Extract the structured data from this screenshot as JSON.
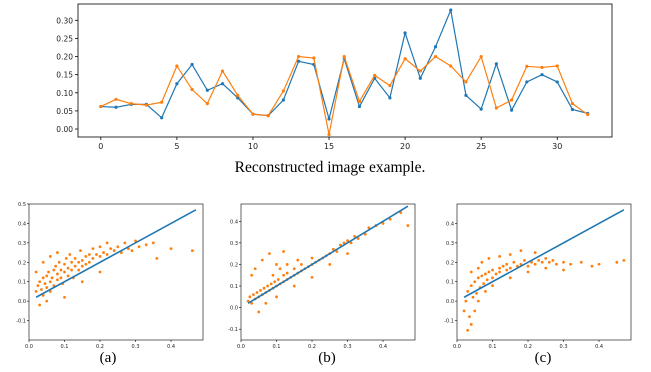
{
  "top_caption": "Reconstructed image example.",
  "colors": {
    "blue": "#1f77b4",
    "orange": "#ff7f0e",
    "axis": "#000000"
  },
  "chart_data": [
    {
      "type": "line",
      "x": [
        0,
        1,
        2,
        3,
        4,
        5,
        6,
        7,
        8,
        9,
        10,
        11,
        12,
        13,
        14,
        15,
        16,
        17,
        18,
        19,
        20,
        21,
        22,
        23,
        24,
        25,
        26,
        27,
        28,
        29,
        30,
        31,
        32
      ],
      "series": [
        {
          "values": [
            0.062,
            0.06,
            0.068,
            0.068,
            0.031,
            0.125,
            0.178,
            0.107,
            0.125,
            0.086,
            0.041,
            0.037,
            0.08,
            0.187,
            0.178,
            0.028,
            0.194,
            0.062,
            0.14,
            0.086,
            0.265,
            0.14,
            0.227,
            0.328,
            0.093,
            0.055,
            0.18,
            0.052,
            0.13,
            0.15,
            0.13,
            0.054,
            0.043
          ],
          "color": "#1f77b4"
        },
        {
          "values": [
            0.062,
            0.082,
            0.07,
            0.066,
            0.074,
            0.174,
            0.109,
            0.07,
            0.16,
            0.093,
            0.041,
            0.037,
            0.105,
            0.2,
            0.196,
            -0.015,
            0.2,
            0.076,
            0.148,
            0.12,
            0.194,
            0.16,
            0.2,
            0.174,
            0.13,
            0.2,
            0.058,
            0.08,
            0.173,
            0.17,
            0.174,
            0.07,
            0.04
          ],
          "color": "#ff7f0e"
        }
      ],
      "xticks": [
        "0",
        "5",
        "10",
        "15",
        "20",
        "25",
        "30"
      ],
      "yticks": [
        "0.00",
        "0.05",
        "0.10",
        "0.15",
        "0.20",
        "0.25",
        "0.30"
      ],
      "xlim": [
        -1.5,
        33.6
      ],
      "ylim": [
        -0.022,
        0.345
      ],
      "grid": false
    },
    {
      "type": "scatter",
      "panel_label": "(a)",
      "xlim": [
        0,
        0.49
      ],
      "ylim": [
        -0.2,
        0.5
      ],
      "xticks": [
        "0.0",
        "0.1",
        "0.2",
        "0.3",
        "0.4"
      ],
      "yticks": [
        "-0.1",
        "0.0",
        "0.1",
        "0.2",
        "0.3",
        "0.4",
        "0.5"
      ],
      "identity_line": {
        "x": [
          0.02,
          0.47
        ],
        "y": [
          0.02,
          0.47
        ],
        "color": "#1f77b4"
      },
      "points_color": "#ff7f0e",
      "points": [
        [
          0.02,
          0.05
        ],
        [
          0.025,
          0.08
        ],
        [
          0.03,
          0.1
        ],
        [
          0.035,
          0.06
        ],
        [
          0.04,
          0.12
        ],
        [
          0.04,
          0.03
        ],
        [
          0.045,
          0.09
        ],
        [
          0.05,
          0.13
        ],
        [
          0.05,
          0.07
        ],
        [
          0.055,
          0.15
        ],
        [
          0.06,
          0.1
        ],
        [
          0.06,
          0.05
        ],
        [
          0.065,
          0.12
        ],
        [
          0.07,
          0.16
        ],
        [
          0.07,
          0.08
        ],
        [
          0.075,
          0.18
        ],
        [
          0.08,
          0.11
        ],
        [
          0.08,
          0.14
        ],
        [
          0.085,
          0.2
        ],
        [
          0.09,
          0.12
        ],
        [
          0.09,
          0.16
        ],
        [
          0.095,
          0.09
        ],
        [
          0.1,
          0.15
        ],
        [
          0.1,
          0.19
        ],
        [
          0.105,
          0.22
        ],
        [
          0.11,
          0.13
        ],
        [
          0.11,
          0.17
        ],
        [
          0.115,
          0.24
        ],
        [
          0.12,
          0.16
        ],
        [
          0.12,
          0.2
        ],
        [
          0.125,
          0.12
        ],
        [
          0.13,
          0.18
        ],
        [
          0.13,
          0.22
        ],
        [
          0.14,
          0.2
        ],
        [
          0.14,
          0.16
        ],
        [
          0.145,
          0.26
        ],
        [
          0.15,
          0.21
        ],
        [
          0.15,
          0.18
        ],
        [
          0.16,
          0.23
        ],
        [
          0.16,
          0.19
        ],
        [
          0.17,
          0.24
        ],
        [
          0.17,
          0.2
        ],
        [
          0.18,
          0.22
        ],
        [
          0.18,
          0.27
        ],
        [
          0.19,
          0.24
        ],
        [
          0.2,
          0.23
        ],
        [
          0.2,
          0.28
        ],
        [
          0.21,
          0.25
        ],
        [
          0.22,
          0.24
        ],
        [
          0.22,
          0.3
        ],
        [
          0.23,
          0.27
        ],
        [
          0.24,
          0.26
        ],
        [
          0.25,
          0.28
        ],
        [
          0.26,
          0.25
        ],
        [
          0.27,
          0.3
        ],
        [
          0.28,
          0.27
        ],
        [
          0.29,
          0.26
        ],
        [
          0.3,
          0.31
        ],
        [
          0.31,
          0.28
        ],
        [
          0.33,
          0.29
        ],
        [
          0.35,
          0.3
        ],
        [
          0.36,
          0.22
        ],
        [
          0.4,
          0.27
        ],
        [
          0.46,
          0.26
        ],
        [
          0.03,
          -0.02
        ],
        [
          0.05,
          0.0
        ],
        [
          0.02,
          0.15
        ],
        [
          0.04,
          0.2
        ],
        [
          0.06,
          0.23
        ],
        [
          0.08,
          0.25
        ],
        [
          0.1,
          0.02
        ],
        [
          0.15,
          0.1
        ],
        [
          0.2,
          0.15
        ]
      ]
    },
    {
      "type": "scatter",
      "panel_label": "(b)",
      "xlim": [
        0,
        0.49
      ],
      "ylim": [
        -0.15,
        0.48
      ],
      "xticks": [
        "0.0",
        "0.1",
        "0.2",
        "0.3",
        "0.4"
      ],
      "yticks": [
        "-0.1",
        "0.0",
        "0.1",
        "0.2",
        "0.3",
        "0.4"
      ],
      "identity_line": {
        "x": [
          0.02,
          0.47
        ],
        "y": [
          0.02,
          0.47
        ],
        "color": "#1f77b4"
      },
      "points_color": "#ff7f0e",
      "points": [
        [
          0.02,
          0.03
        ],
        [
          0.025,
          0.05
        ],
        [
          0.03,
          0.02
        ],
        [
          0.035,
          0.06
        ],
        [
          0.04,
          0.04
        ],
        [
          0.045,
          0.07
        ],
        [
          0.05,
          0.05
        ],
        [
          0.055,
          0.08
        ],
        [
          0.06,
          0.06
        ],
        [
          0.065,
          0.09
        ],
        [
          0.07,
          0.07
        ],
        [
          0.075,
          0.1
        ],
        [
          0.08,
          0.08
        ],
        [
          0.085,
          0.11
        ],
        [
          0.09,
          0.09
        ],
        [
          0.095,
          0.12
        ],
        [
          0.1,
          0.1
        ],
        [
          0.105,
          0.13
        ],
        [
          0.11,
          0.11
        ],
        [
          0.12,
          0.12
        ],
        [
          0.12,
          0.15
        ],
        [
          0.13,
          0.13
        ],
        [
          0.13,
          0.16
        ],
        [
          0.14,
          0.14
        ],
        [
          0.15,
          0.15
        ],
        [
          0.15,
          0.18
        ],
        [
          0.16,
          0.16
        ],
        [
          0.17,
          0.17
        ],
        [
          0.17,
          0.2
        ],
        [
          0.18,
          0.18
        ],
        [
          0.19,
          0.19
        ],
        [
          0.2,
          0.2
        ],
        [
          0.2,
          0.23
        ],
        [
          0.21,
          0.21
        ],
        [
          0.22,
          0.22
        ],
        [
          0.23,
          0.23
        ],
        [
          0.24,
          0.24
        ],
        [
          0.25,
          0.25
        ],
        [
          0.26,
          0.27
        ],
        [
          0.27,
          0.26
        ],
        [
          0.28,
          0.29
        ],
        [
          0.29,
          0.3
        ],
        [
          0.3,
          0.31
        ],
        [
          0.31,
          0.3
        ],
        [
          0.32,
          0.33
        ],
        [
          0.33,
          0.32
        ],
        [
          0.35,
          0.34
        ],
        [
          0.36,
          0.37
        ],
        [
          0.38,
          0.38
        ],
        [
          0.4,
          0.39
        ],
        [
          0.42,
          0.41
        ],
        [
          0.45,
          0.44
        ],
        [
          0.47,
          0.38
        ],
        [
          0.03,
          0.15
        ],
        [
          0.04,
          0.18
        ],
        [
          0.06,
          0.22
        ],
        [
          0.08,
          0.25
        ],
        [
          0.1,
          0.2
        ],
        [
          0.12,
          0.26
        ],
        [
          0.07,
          0.02
        ],
        [
          0.1,
          0.05
        ],
        [
          0.15,
          0.1
        ],
        [
          0.2,
          0.14
        ],
        [
          0.25,
          0.2
        ],
        [
          0.3,
          0.25
        ],
        [
          0.05,
          -0.02
        ],
        [
          0.09,
          0.15
        ],
        [
          0.11,
          0.18
        ],
        [
          0.13,
          0.2
        ],
        [
          0.16,
          0.22
        ]
      ]
    },
    {
      "type": "scatter",
      "panel_label": "(c)",
      "xlim": [
        0,
        0.49
      ],
      "ylim": [
        -0.2,
        0.5
      ],
      "xticks": [
        "0.0",
        "0.1",
        "0.2",
        "0.3",
        "0.4"
      ],
      "yticks": [
        "-0.1",
        "0.0",
        "0.1",
        "0.2",
        "0.3",
        "0.4"
      ],
      "identity_line": {
        "x": [
          0.02,
          0.47
        ],
        "y": [
          0.02,
          0.47
        ],
        "color": "#1f77b4"
      },
      "points_color": "#ff7f0e",
      "points": [
        [
          0.02,
          -0.05
        ],
        [
          0.025,
          0.0
        ],
        [
          0.03,
          0.05
        ],
        [
          0.035,
          -0.08
        ],
        [
          0.04,
          0.08
        ],
        [
          0.045,
          0.02
        ],
        [
          0.05,
          0.1
        ],
        [
          0.055,
          0.04
        ],
        [
          0.06,
          0.12
        ],
        [
          0.065,
          0.07
        ],
        [
          0.07,
          0.13
        ],
        [
          0.075,
          0.09
        ],
        [
          0.08,
          0.14
        ],
        [
          0.085,
          0.11
        ],
        [
          0.09,
          0.15
        ],
        [
          0.1,
          0.12
        ],
        [
          0.1,
          0.16
        ],
        [
          0.11,
          0.14
        ],
        [
          0.12,
          0.17
        ],
        [
          0.12,
          0.15
        ],
        [
          0.13,
          0.18
        ],
        [
          0.14,
          0.16
        ],
        [
          0.14,
          0.19
        ],
        [
          0.15,
          0.17
        ],
        [
          0.16,
          0.2
        ],
        [
          0.17,
          0.18
        ],
        [
          0.18,
          0.19
        ],
        [
          0.19,
          0.21
        ],
        [
          0.2,
          0.18
        ],
        [
          0.21,
          0.2
        ],
        [
          0.22,
          0.19
        ],
        [
          0.23,
          0.21
        ],
        [
          0.24,
          0.2
        ],
        [
          0.25,
          0.22
        ],
        [
          0.26,
          0.2
        ],
        [
          0.27,
          0.21
        ],
        [
          0.28,
          0.19
        ],
        [
          0.3,
          0.2
        ],
        [
          0.32,
          0.19
        ],
        [
          0.35,
          0.2
        ],
        [
          0.38,
          0.18
        ],
        [
          0.4,
          0.19
        ],
        [
          0.45,
          0.2
        ],
        [
          0.47,
          0.21
        ],
        [
          0.03,
          -0.15
        ],
        [
          0.04,
          -0.12
        ],
        [
          0.05,
          -0.05
        ],
        [
          0.06,
          0.0
        ],
        [
          0.08,
          0.05
        ],
        [
          0.1,
          0.08
        ],
        [
          0.15,
          0.12
        ],
        [
          0.2,
          0.15
        ],
        [
          0.25,
          0.17
        ],
        [
          0.3,
          0.16
        ],
        [
          0.07,
          0.2
        ],
        [
          0.09,
          0.22
        ],
        [
          0.12,
          0.23
        ],
        [
          0.15,
          0.24
        ],
        [
          0.18,
          0.26
        ],
        [
          0.22,
          0.25
        ],
        [
          0.04,
          0.15
        ],
        [
          0.06,
          0.17
        ]
      ]
    }
  ]
}
